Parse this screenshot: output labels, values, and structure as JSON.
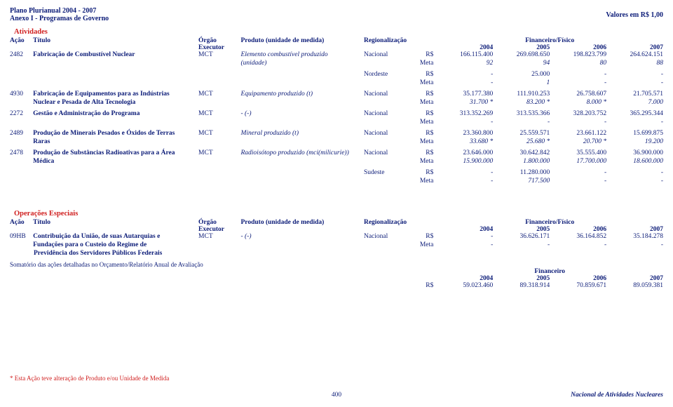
{
  "header": {
    "line1": "Plano Plurianual 2004 - 2007",
    "line2": "Anexo I - Programas de Governo",
    "right": "Valores em R$ 1,00"
  },
  "section1": "Atividades",
  "col": {
    "acao": "Ação",
    "titulo": "Título",
    "orgao": "Órgão",
    "executor": "Executor",
    "produto": "Produto (unidade de medida)",
    "regional": "Regionalização",
    "finfis": "Financeiro/Físico",
    "y2004": "2004",
    "y2005": "2005",
    "y2006": "2006",
    "y2007": "2007"
  },
  "rows": [
    {
      "acao": "2482",
      "titulo1": "Fabricação de Combustível Nuclear",
      "titulo2": "",
      "orgao": "MCT",
      "prod1": "Elemento combustível produzido",
      "prod2": "(unidade)",
      "reg": "Nacional",
      "rs": [
        "166.115.400",
        "269.698.650",
        "198.823.799",
        "264.624.151"
      ],
      "meta": [
        "92",
        "94",
        "80",
        "88"
      ],
      "sub": [
        {
          "reg": "Nordeste",
          "rs": [
            "-",
            "25.000",
            "-",
            "-"
          ],
          "meta": [
            "-",
            "1",
            "-",
            "-"
          ]
        }
      ]
    },
    {
      "acao": "4930",
      "titulo1": "Fabricação de Equipamentos para as Indústrias",
      "titulo2": "Nuclear e Pesada de Alta Tecnologia",
      "orgao": "MCT",
      "prod1": "Equipamento produzido (t)",
      "prod2": "",
      "reg": "Nacional",
      "rs": [
        "35.177.380",
        "111.910.253",
        "26.758.607",
        "21.705.571"
      ],
      "meta": [
        "31.700 *",
        "83.200 *",
        "8.000 *",
        "7.000"
      ]
    },
    {
      "acao": "2272",
      "titulo1": "Gestão e Administração do Programa",
      "titulo2": "",
      "orgao": "MCT",
      "prod1": "- (-)",
      "prod2": "",
      "reg": "Nacional",
      "rs": [
        "313.352.269",
        "313.535.366",
        "328.203.752",
        "365.295.344"
      ],
      "meta": [
        "-",
        "-",
        "-",
        "-"
      ]
    },
    {
      "acao": "2489",
      "titulo1": "Produção de Minerais Pesados e Óxidos de Terras",
      "titulo2": "Raras",
      "orgao": "MCT",
      "prod1": "Mineral produzido (t)",
      "prod2": "",
      "reg": "Nacional",
      "rs": [
        "23.360.800",
        "25.559.571",
        "23.661.122",
        "15.699.875"
      ],
      "meta": [
        "33.680 *",
        "25.680 *",
        "20.700 *",
        "19.200"
      ]
    },
    {
      "acao": "2478",
      "titulo1": "Produção de Substâncias Radioativas para a Área",
      "titulo2": "Médica",
      "orgao": "MCT",
      "prod1": "Radioisótopo produzido (mci(milicurie))",
      "prod2": "",
      "reg": "Nacional",
      "rs": [
        "23.646.000",
        "30.642.842",
        "35.555.400",
        "36.900.000"
      ],
      "meta": [
        "15.900.000",
        "1.800.000",
        "17.700.000",
        "18.600.000"
      ],
      "sub": [
        {
          "reg": "Sudeste",
          "rs": [
            "-",
            "11.280.000",
            "-",
            "-"
          ],
          "meta": [
            "-",
            "717.500",
            "-",
            "-"
          ]
        }
      ]
    }
  ],
  "section2": "Operações Especiais",
  "rows2": [
    {
      "acao": "09HB",
      "titulo1": "Contribuição da União, de suas Autarquias e",
      "titulo2": "Fundações para o Custeio do Regime de",
      "titulo3": "Previdência dos Servidores Públicos Federais",
      "orgao": "MCT",
      "prod1": "- (-)",
      "reg": "Nacional",
      "rs": [
        "-",
        "36.626.171",
        "36.164.852",
        "35.184.278"
      ],
      "meta": [
        "-",
        "-",
        "-",
        "-"
      ]
    }
  ],
  "somatorio": "Somatório das ações detalhadas no Orçamento/Relatório Anual de Avaliação",
  "finlabel": "Financeiro",
  "totals": [
    "59.023.460",
    "89.318.914",
    "70.859.671",
    "89.059.381"
  ],
  "rslabel": "R$",
  "metalabel": "Meta",
  "footnote": "* Esta Ação teve alteração de Produto e/ou Unidade de Medida",
  "footer": {
    "pgno": "400",
    "right": "Nacional de Atividades Nucleares"
  }
}
